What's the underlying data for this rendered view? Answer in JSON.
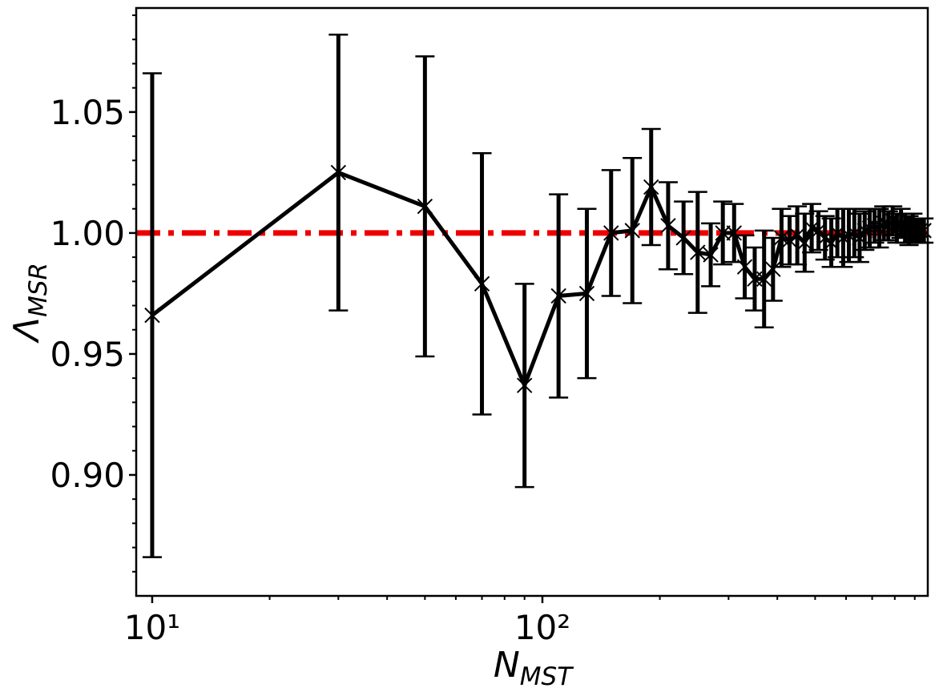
{
  "chart_data": {
    "type": "errorbar",
    "xlabel": {
      "main": "N",
      "sub": "MST"
    },
    "ylabel": {
      "main": "Λ",
      "sub": "MSR"
    },
    "xscale": "log",
    "x": [
      10,
      30,
      50,
      70,
      90,
      110,
      130,
      150,
      170,
      190,
      210,
      230,
      250,
      270,
      290,
      310,
      330,
      350,
      370,
      390,
      410,
      430,
      450,
      470,
      490,
      510,
      530,
      550,
      570,
      590,
      610,
      630,
      650,
      670,
      690,
      710,
      730,
      750,
      770,
      790,
      810,
      830,
      850,
      870,
      890,
      910,
      930,
      950
    ],
    "series": [
      {
        "color": "#000000",
        "values": [
          0.966,
          1.025,
          1.011,
          0.979,
          0.937,
          0.974,
          0.975,
          1.0,
          1.001,
          1.019,
          1.003,
          0.998,
          0.992,
          0.991,
          1.0,
          1.0,
          0.986,
          0.981,
          0.981,
          0.985,
          0.998,
          0.997,
          0.999,
          0.996,
          1.002,
          1.001,
          0.998,
          0.996,
          1.0,
          0.998,
          0.999,
          1.0,
          0.998,
          1.001,
          1.002,
          1.003,
          1.002,
          1.004,
          1.003,
          1.005,
          1.002,
          1.004,
          1.002,
          1.001,
          1.002,
          1.001,
          1.001,
          1.001
        ],
        "errors": [
          0.1,
          0.057,
          0.062,
          0.054,
          0.042,
          0.042,
          0.035,
          0.026,
          0.03,
          0.024,
          0.018,
          0.015,
          0.025,
          0.013,
          0.013,
          0.012,
          0.013,
          0.013,
          0.02,
          0.013,
          0.012,
          0.01,
          0.012,
          0.012,
          0.01,
          0.008,
          0.009,
          0.01,
          0.01,
          0.012,
          0.011,
          0.01,
          0.01,
          0.008,
          0.008,
          0.007,
          0.008,
          0.007,
          0.006,
          0.006,
          0.006,
          0.006,
          0.006,
          0.006,
          0.006,
          0.005,
          0.005,
          0.005
        ]
      }
    ],
    "hline": {
      "value": 1.0,
      "color": "#ee0000"
    },
    "xlim": [
      9.1,
      972
    ],
    "ylim": [
      0.85,
      1.093
    ],
    "xticks": [
      {
        "value": 10,
        "label": "10¹"
      },
      {
        "value": 100,
        "label": "10²"
      }
    ],
    "xminorticks": [
      20,
      30,
      40,
      50,
      60,
      70,
      80,
      90,
      200,
      300,
      400,
      500,
      600,
      700,
      800,
      900
    ],
    "yticks": [
      {
        "value": 0.9,
        "label": "0.90"
      },
      0.95,
      {
        "value": 1.0,
        "label": "1.00"
      },
      1.05
    ],
    "yminorticks": [
      0.86,
      0.87,
      0.88,
      0.89,
      0.91,
      0.92,
      0.93,
      0.94,
      0.96,
      0.97,
      0.98,
      0.99,
      1.01,
      1.02,
      1.03,
      1.04,
      1.06,
      1.07,
      1.08,
      1.09
    ]
  }
}
